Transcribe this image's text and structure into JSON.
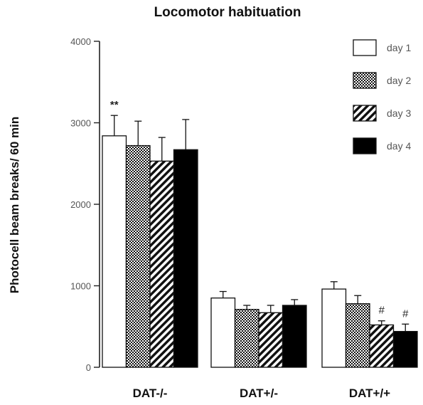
{
  "chart_data": {
    "type": "bar",
    "title": "Locomotor habituation",
    "xlabel": "",
    "ylabel": "Photocell beam breaks/ 60 min",
    "ylim": [
      0,
      4000
    ],
    "yticks": [
      0,
      1000,
      2000,
      3000,
      4000
    ],
    "grid": false,
    "legend_position": "top-right",
    "categories": [
      "DAT-/-",
      "DAT+/-",
      "DAT+/+"
    ],
    "series": [
      {
        "name": "day 1",
        "fill": "white",
        "values": [
          2840,
          850,
          960
        ],
        "errors": [
          250,
          80,
          90
        ]
      },
      {
        "name": "day 2",
        "fill": "crosshatch",
        "values": [
          2720,
          710,
          780
        ],
        "errors": [
          300,
          50,
          100
        ]
      },
      {
        "name": "day 3",
        "fill": "diagonal",
        "values": [
          2530,
          670,
          520
        ],
        "errors": [
          290,
          90,
          50
        ]
      },
      {
        "name": "day 4",
        "fill": "black",
        "values": [
          2670,
          760,
          440
        ],
        "errors": [
          370,
          70,
          90
        ]
      }
    ],
    "annotations": [
      {
        "text": "**",
        "category": 0,
        "series": 0
      },
      {
        "text": "#",
        "category": 2,
        "series": 2
      },
      {
        "text": "#",
        "category": 2,
        "series": 3
      }
    ]
  }
}
